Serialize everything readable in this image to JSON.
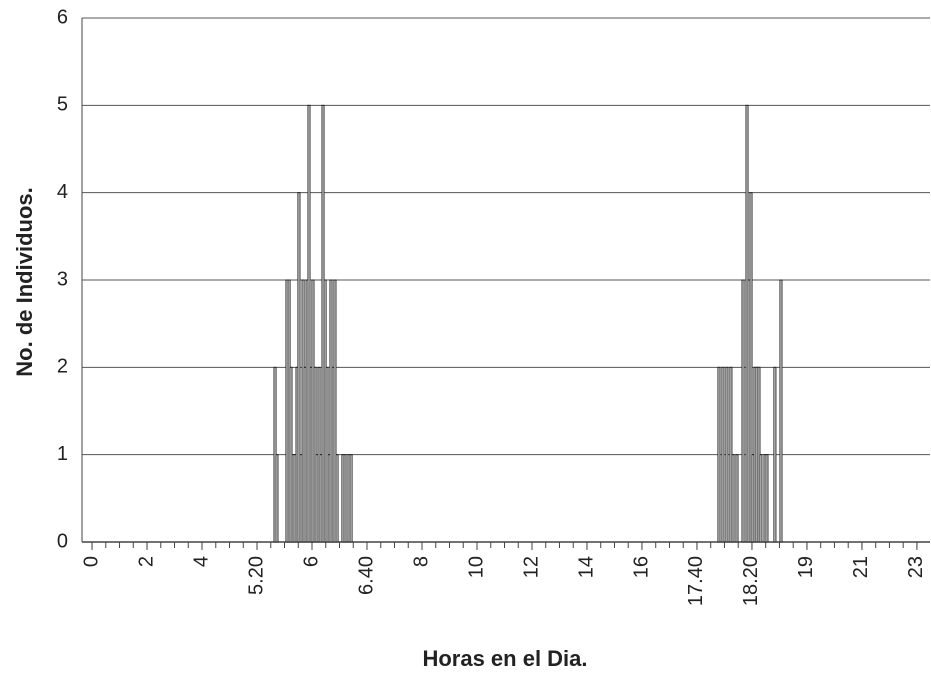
{
  "chart_data": {
    "type": "bar",
    "xlabel": "Horas en el Dia.",
    "ylabel": "No. de Individuos.",
    "x": [
      13.31,
      13.45,
      14.18,
      14.33,
      14.47,
      14.62,
      14.76,
      14.91,
      15.05,
      15.2,
      15.35,
      15.49,
      15.64,
      15.78,
      15.93,
      16.07,
      16.22,
      16.36,
      16.51,
      16.65,
      16.8,
      16.95,
      17.09,
      17.24,
      17.38,
      17.53,
      17.67,
      17.82,
      18.25,
      18.4,
      18.69,
      18.84,
      45.6,
      45.89,
      46.18,
      46.47,
      46.62,
      46.91,
      47.35,
      47.64,
      47.78,
      47.93,
      48.07,
      48.22,
      48.36,
      48.51,
      48.65,
      48.95,
      49.09,
      49.67,
      50.11
    ],
    "values": [
      2,
      1,
      3,
      3,
      2,
      1,
      1,
      2,
      4,
      1,
      3,
      2,
      3,
      5,
      2,
      3,
      2,
      1,
      2,
      1,
      5,
      3,
      2,
      1,
      3,
      2,
      3,
      1,
      1,
      1,
      1,
      1,
      2,
      2,
      2,
      2,
      1,
      1,
      3,
      5,
      3,
      4,
      1,
      2,
      2,
      2,
      1,
      1,
      1,
      2,
      3
    ],
    "color": "#222222",
    "xlim": [
      -0.73,
      60.95
    ],
    "xticks": [
      {
        "value": 0,
        "label": "0"
      },
      {
        "value": 4,
        "label": "2"
      },
      {
        "value": 8,
        "label": "4"
      },
      {
        "value": 12,
        "label": "5.20"
      },
      {
        "value": 16,
        "label": "6"
      },
      {
        "value": 20,
        "label": "6.40"
      },
      {
        "value": 24,
        "label": "8"
      },
      {
        "value": 28,
        "label": "10"
      },
      {
        "value": 32,
        "label": "12"
      },
      {
        "value": 36,
        "label": "14"
      },
      {
        "value": 40,
        "label": "16"
      },
      {
        "value": 44,
        "label": "17.40"
      },
      {
        "value": 48,
        "label": "18.20"
      },
      {
        "value": 52,
        "label": "19"
      },
      {
        "value": 56,
        "label": "21"
      },
      {
        "value": 60,
        "label": "23"
      }
    ],
    "ylim": [
      0,
      6
    ],
    "yticks": [
      0,
      1,
      2,
      3,
      4,
      5,
      6
    ],
    "grid": true
  }
}
